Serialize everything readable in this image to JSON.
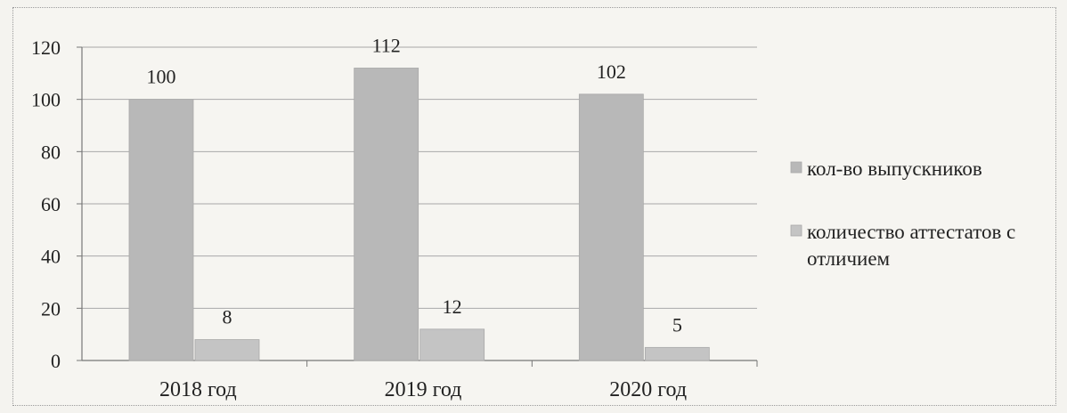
{
  "chart_data": {
    "type": "bar",
    "categories": [
      "2018 год",
      "2019 год",
      "2020 год"
    ],
    "series": [
      {
        "name": "кол-во выпускников",
        "values": [
          100,
          112,
          102
        ],
        "color": "#b8b8b8"
      },
      {
        "name": "количество аттестатов с отличием",
        "values": [
          8,
          12,
          5
        ],
        "color": "#c4c4c4"
      }
    ],
    "data_labels": [
      [
        "100",
        "112",
        "102"
      ],
      [
        "8",
        "12",
        "5"
      ]
    ],
    "ylim": [
      0,
      120
    ],
    "yticks": [
      0,
      20,
      40,
      60,
      80,
      100,
      120
    ],
    "ytick_labels": [
      "0",
      "20",
      "40",
      "60",
      "80",
      "100",
      "120"
    ],
    "legend_lines": [
      [
        "кол-во выпускников"
      ],
      [
        "количество аттестатов с",
        "отличием"
      ]
    ],
    "grid": true,
    "legend_position": "right",
    "xlabel": "",
    "ylabel": "",
    "title": ""
  }
}
